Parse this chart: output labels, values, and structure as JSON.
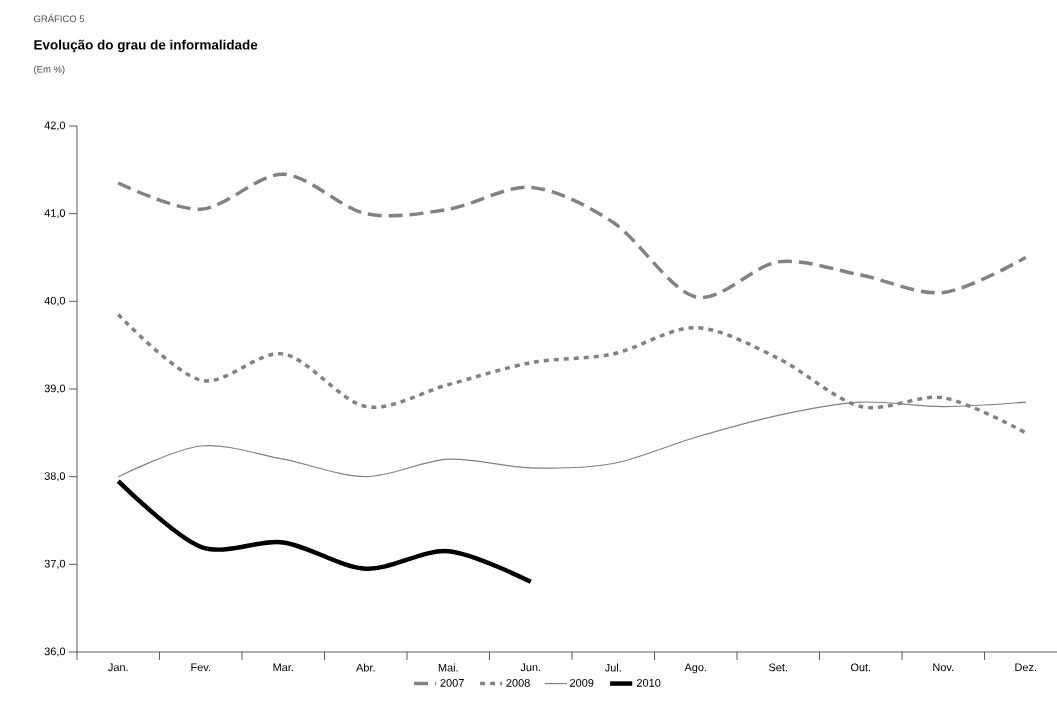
{
  "chart_data": {
    "type": "line",
    "title": "Evolução do grau de informalidade",
    "subtitle": "(Em %)",
    "annotations": [
      "GRÁFICO 5"
    ],
    "categories": [
      "Jan.",
      "Fev.",
      "Mar.",
      "Abr.",
      "Mai.",
      "Jun.",
      "Jul.",
      "Ago.",
      "Set.",
      "Out.",
      "Nov.",
      "Dez."
    ],
    "series": [
      {
        "name": "2007",
        "color": "#808285",
        "line_style": "dashed",
        "values": [
          41.35,
          41.05,
          41.45,
          41.0,
          41.05,
          41.3,
          40.9,
          40.05,
          40.45,
          40.3,
          40.1,
          40.5
        ]
      },
      {
        "name": "2008",
        "color": "#808285",
        "line_style": "dotted",
        "values": [
          39.85,
          39.1,
          39.4,
          38.8,
          39.05,
          39.3,
          39.4,
          39.7,
          39.35,
          38.8,
          38.9,
          38.5
        ]
      },
      {
        "name": "2009",
        "color": "#808285",
        "line_style": "solid",
        "values": [
          38.0,
          38.35,
          38.2,
          38.0,
          38.2,
          38.1,
          38.15,
          38.45,
          38.7,
          38.85,
          38.8,
          38.85
        ]
      },
      {
        "name": "2010",
        "color": "#000000",
        "line_style": "solid",
        "values": [
          37.95,
          37.2,
          37.25,
          36.95,
          37.15,
          36.8,
          null,
          null,
          null,
          null,
          null,
          null
        ]
      }
    ],
    "ylim": [
      36,
      42
    ],
    "yticks": [
      {
        "value": 36,
        "label": "36,0"
      },
      {
        "value": 37,
        "label": "37,0"
      },
      {
        "value": 38,
        "label": "38,0"
      },
      {
        "value": 39,
        "label": "39,0"
      },
      {
        "value": 40,
        "label": "40,0"
      },
      {
        "value": 41,
        "label": "41,0"
      },
      {
        "value": 42,
        "label": "42,0"
      }
    ],
    "grid": false,
    "legend": "bottom",
    "marker": "none"
  }
}
